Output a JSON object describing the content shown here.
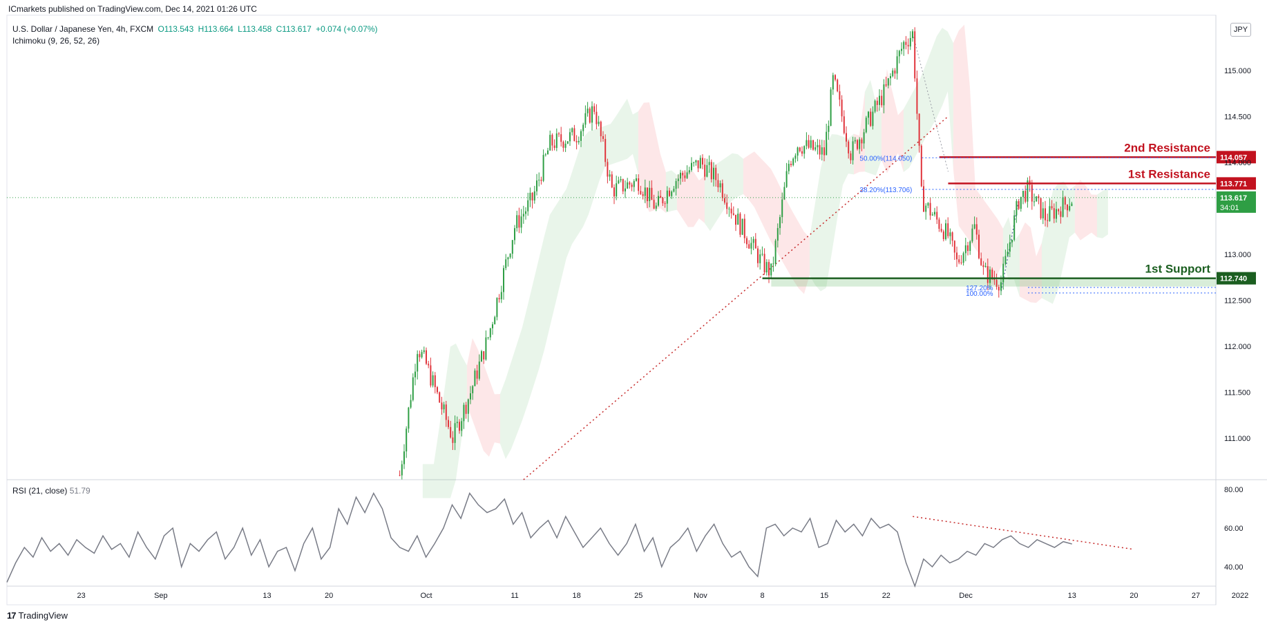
{
  "header": {
    "published": "ICmarkets published on TradingView.com, Dec 14, 2021 01:26 UTC",
    "symbol": "U.S. Dollar / Japanese Yen, 4h, FXCM",
    "open": "O113.543",
    "high": "H113.664",
    "low": "L113.458",
    "close": "C113.617",
    "change": "+0.074 (+0.07%)",
    "indicator": "Ichimoku (9, 26, 52, 26)",
    "currency_button": "JPY"
  },
  "rsi_legend": {
    "name": "RSI (21, close)",
    "value": "51.79"
  },
  "footer": {
    "brand": "TradingView",
    "logo": "17"
  },
  "colors": {
    "up": "#2e9e44",
    "down": "#e0343b",
    "resistance": "#c2121f",
    "support": "#1b5e20",
    "fib": "#2962ff",
    "rsi": "#787b86"
  },
  "chart_data": [
    {
      "type": "candlestick",
      "title": "U.S. Dollar / Japanese Yen, 4h, FXCM",
      "ylim": [
        110.55,
        115.6
      ],
      "y_ticks": [
        "115.000",
        "114.500",
        "114.000",
        "113.000",
        "112.500",
        "112.000",
        "111.500",
        "111.000"
      ],
      "y_tick_values": [
        115.0,
        114.5,
        114.0,
        113.0,
        112.5,
        112.0,
        111.5,
        111.0
      ],
      "x_ticks": [
        "23",
        "Sep",
        "13",
        "20",
        "Oct",
        "11",
        "18",
        "25",
        "Nov",
        "8",
        "15",
        "22",
        "Dec",
        "13",
        "20",
        "27",
        "2022"
      ],
      "price_path": [
        [
          "2021-09-28",
          110.6
        ],
        [
          "2021-09-30",
          112.0
        ],
        [
          "2021-10-01",
          111.8
        ],
        [
          "2021-10-04",
          111.0
        ],
        [
          "2021-10-06",
          111.5
        ],
        [
          "2021-10-08",
          112.1
        ],
        [
          "2021-10-11",
          113.3
        ],
        [
          "2021-10-13",
          113.6
        ],
        [
          "2021-10-15",
          114.2
        ],
        [
          "2021-10-18",
          114.3
        ],
        [
          "2021-10-20",
          114.6
        ],
        [
          "2021-10-22",
          113.7
        ],
        [
          "2021-10-25",
          113.8
        ],
        [
          "2021-10-27",
          113.5
        ],
        [
          "2021-10-29",
          113.8
        ],
        [
          "2021-11-01",
          114.0
        ],
        [
          "2021-11-03",
          113.8
        ],
        [
          "2021-11-05",
          113.4
        ],
        [
          "2021-11-08",
          112.9
        ],
        [
          "2021-11-09",
          112.8
        ],
        [
          "2021-11-11",
          114.0
        ],
        [
          "2021-11-12",
          114.2
        ],
        [
          "2021-11-15",
          114.1
        ],
        [
          "2021-11-16",
          114.9
        ],
        [
          "2021-11-18",
          114.1
        ],
        [
          "2021-11-22",
          114.8
        ],
        [
          "2021-11-24",
          115.3
        ],
        [
          "2021-11-25",
          115.4
        ],
        [
          "2021-11-26",
          113.6
        ],
        [
          "2021-11-29",
          113.2
        ],
        [
          "2021-11-30",
          112.9
        ],
        [
          "2021-12-02",
          113.3
        ],
        [
          "2021-12-03",
          112.8
        ],
        [
          "2021-12-05",
          112.7
        ],
        [
          "2021-12-07",
          113.6
        ],
        [
          "2021-12-08",
          113.7
        ],
        [
          "2021-12-10",
          113.4
        ],
        [
          "2021-12-13",
          113.6
        ]
      ],
      "levels": [
        {
          "label": "2nd Resistance",
          "value": 114.057,
          "price_label": "114.057"
        },
        {
          "label": "1st Resistance",
          "value": 113.771,
          "price_label": "113.771"
        },
        {
          "label": "1st Support",
          "value": 112.74,
          "price_label": "112.740"
        }
      ],
      "last_price": {
        "value": 113.617,
        "label": "113.617",
        "countdown": "34:01"
      },
      "fib_labels": [
        "50.00%(114.050)",
        "38.20%(113.706)",
        "127.20%",
        "100.00%"
      ]
    },
    {
      "type": "line",
      "title": "RSI (21, close)",
      "ylim": [
        30,
        85
      ],
      "y_ticks": [
        "80.00",
        "60.00",
        "40.00"
      ],
      "y_tick_values": [
        80,
        60,
        40
      ],
      "series": [
        {
          "name": "RSI (21, close)",
          "values": [
            32,
            42,
            50,
            45,
            55,
            48,
            52,
            46,
            54,
            50,
            47,
            56,
            49,
            52,
            45,
            58,
            50,
            44,
            56,
            60,
            40,
            52,
            48,
            54,
            58,
            44,
            50,
            60,
            46,
            54,
            40,
            48,
            50,
            38,
            52,
            60,
            44,
            50,
            70,
            62,
            76,
            68,
            78,
            70,
            55,
            50,
            48,
            56,
            45,
            52,
            60,
            72,
            65,
            78,
            72,
            68,
            70,
            75,
            62,
            68,
            55,
            60,
            64,
            55,
            66,
            58,
            50,
            55,
            60,
            52,
            46,
            52,
            62,
            48,
            55,
            40,
            50,
            54,
            60,
            48,
            56,
            62,
            52,
            45,
            48,
            40,
            35,
            60,
            62,
            56,
            60,
            58,
            65,
            50,
            52,
            64,
            58,
            62,
            56,
            65,
            60,
            62,
            58,
            42,
            30,
            44,
            40,
            46,
            42,
            44,
            48,
            46,
            52,
            50,
            54,
            56,
            52,
            50,
            54,
            52,
            50,
            53,
            51.79
          ]
        }
      ]
    }
  ]
}
